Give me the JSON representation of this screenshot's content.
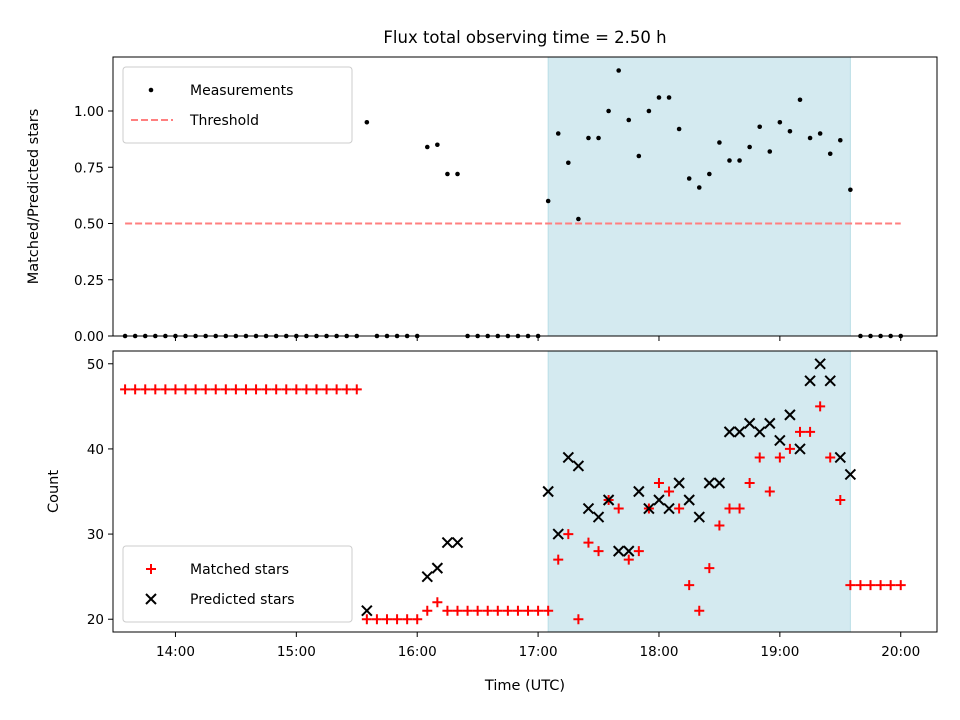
{
  "chart_data": [
    {
      "type": "scatter",
      "title": "Flux total observing time = 2.50 h",
      "ylabel": "Matched/Predicted stars",
      "xlabel": "",
      "xlim": [
        "13:29",
        "20:18"
      ],
      "ylim": [
        0,
        1.24
      ],
      "x_tick_labels": [
        "14:00",
        "15:00",
        "16:00",
        "17:00",
        "18:00",
        "19:00",
        "20:00"
      ],
      "y_tick_labels": [
        "0.00",
        "0.25",
        "0.50",
        "0.75",
        "1.00"
      ],
      "shaded_span": {
        "start": "17:05",
        "end": "19:35",
        "color": "#d4eaf0"
      },
      "legend_position": "upper left",
      "series": [
        {
          "name": "Measurements",
          "style": "dot",
          "color": "#000000",
          "points": [
            [
              "13:35",
              0
            ],
            [
              "13:40",
              0
            ],
            [
              "13:45",
              0
            ],
            [
              "13:50",
              0
            ],
            [
              "13:55",
              0
            ],
            [
              "14:00",
              0
            ],
            [
              "14:05",
              0
            ],
            [
              "14:10",
              0
            ],
            [
              "14:15",
              0
            ],
            [
              "14:20",
              0
            ],
            [
              "14:25",
              0
            ],
            [
              "14:30",
              0
            ],
            [
              "14:35",
              0
            ],
            [
              "14:40",
              0
            ],
            [
              "14:45",
              0
            ],
            [
              "14:50",
              0
            ],
            [
              "14:55",
              0
            ],
            [
              "15:00",
              0
            ],
            [
              "15:05",
              0
            ],
            [
              "15:10",
              0
            ],
            [
              "15:15",
              0
            ],
            [
              "15:20",
              0
            ],
            [
              "15:25",
              0
            ],
            [
              "15:30",
              0
            ],
            [
              "15:35",
              0.95
            ],
            [
              "15:40",
              0
            ],
            [
              "15:45",
              0
            ],
            [
              "15:50",
              0
            ],
            [
              "15:55",
              0
            ],
            [
              "16:00",
              0
            ],
            [
              "16:05",
              0.84
            ],
            [
              "16:10",
              0.85
            ],
            [
              "16:15",
              0.72
            ],
            [
              "16:20",
              0.72
            ],
            [
              "16:25",
              0
            ],
            [
              "16:30",
              0
            ],
            [
              "16:35",
              0
            ],
            [
              "16:40",
              0
            ],
            [
              "16:45",
              0
            ],
            [
              "16:50",
              0
            ],
            [
              "16:55",
              0
            ],
            [
              "17:00",
              0
            ],
            [
              "17:05",
              0.6
            ],
            [
              "17:10",
              0.9
            ],
            [
              "17:15",
              0.77
            ],
            [
              "17:20",
              0.52
            ],
            [
              "17:25",
              0.88
            ],
            [
              "17:30",
              0.88
            ],
            [
              "17:35",
              1.0
            ],
            [
              "17:40",
              1.18
            ],
            [
              "17:45",
              0.96
            ],
            [
              "17:50",
              0.8
            ],
            [
              "17:55",
              1.0
            ],
            [
              "18:00",
              1.06
            ],
            [
              "18:05",
              1.06
            ],
            [
              "18:10",
              0.92
            ],
            [
              "18:15",
              0.7
            ],
            [
              "18:20",
              0.66
            ],
            [
              "18:25",
              0.72
            ],
            [
              "18:30",
              0.86
            ],
            [
              "18:35",
              0.78
            ],
            [
              "18:40",
              0.78
            ],
            [
              "18:45",
              0.84
            ],
            [
              "18:50",
              0.93
            ],
            [
              "18:55",
              0.82
            ],
            [
              "19:00",
              0.95
            ],
            [
              "19:05",
              0.91
            ],
            [
              "19:10",
              1.05
            ],
            [
              "19:15",
              0.88
            ],
            [
              "19:20",
              0.9
            ],
            [
              "19:25",
              0.81
            ],
            [
              "19:30",
              0.87
            ],
            [
              "19:35",
              0.65
            ],
            [
              "19:40",
              0
            ],
            [
              "19:45",
              0
            ],
            [
              "19:50",
              0
            ],
            [
              "19:55",
              0
            ],
            [
              "20:00",
              0
            ]
          ]
        },
        {
          "name": "Threshold",
          "style": "dashed-line",
          "color": "#ff7f7f",
          "points": [
            [
              "13:35",
              0.5
            ],
            [
              "20:00",
              0.5
            ]
          ]
        }
      ]
    },
    {
      "type": "scatter",
      "title": "",
      "ylabel": "Count",
      "xlabel": "Time (UTC)",
      "xlim": [
        "13:29",
        "20:18"
      ],
      "ylim": [
        18.5,
        51.5
      ],
      "x_tick_labels": [
        "14:00",
        "15:00",
        "16:00",
        "17:00",
        "18:00",
        "19:00",
        "20:00"
      ],
      "y_tick_labels": [
        "20",
        "30",
        "40",
        "50"
      ],
      "shaded_span": {
        "start": "17:05",
        "end": "19:35",
        "color": "#d4eaf0"
      },
      "legend_position": "lower left",
      "series": [
        {
          "name": "Matched stars",
          "style": "plus",
          "color": "#ff0000",
          "points": [
            [
              "13:35",
              47
            ],
            [
              "13:40",
              47
            ],
            [
              "13:45",
              47
            ],
            [
              "13:50",
              47
            ],
            [
              "13:55",
              47
            ],
            [
              "14:00",
              47
            ],
            [
              "14:05",
              47
            ],
            [
              "14:10",
              47
            ],
            [
              "14:15",
              47
            ],
            [
              "14:20",
              47
            ],
            [
              "14:25",
              47
            ],
            [
              "14:30",
              47
            ],
            [
              "14:35",
              47
            ],
            [
              "14:40",
              47
            ],
            [
              "14:45",
              47
            ],
            [
              "14:50",
              47
            ],
            [
              "14:55",
              47
            ],
            [
              "15:00",
              47
            ],
            [
              "15:05",
              47
            ],
            [
              "15:10",
              47
            ],
            [
              "15:15",
              47
            ],
            [
              "15:20",
              47
            ],
            [
              "15:25",
              47
            ],
            [
              "15:30",
              47
            ],
            [
              "15:35",
              20
            ],
            [
              "15:40",
              20
            ],
            [
              "15:45",
              20
            ],
            [
              "15:50",
              20
            ],
            [
              "15:55",
              20
            ],
            [
              "16:00",
              20
            ],
            [
              "16:05",
              21
            ],
            [
              "16:10",
              22
            ],
            [
              "16:15",
              21
            ],
            [
              "16:20",
              21
            ],
            [
              "16:25",
              21
            ],
            [
              "16:30",
              21
            ],
            [
              "16:35",
              21
            ],
            [
              "16:40",
              21
            ],
            [
              "16:45",
              21
            ],
            [
              "16:50",
              21
            ],
            [
              "16:55",
              21
            ],
            [
              "17:00",
              21
            ],
            [
              "17:05",
              21
            ],
            [
              "17:10",
              27
            ],
            [
              "17:15",
              30
            ],
            [
              "17:20",
              20
            ],
            [
              "17:25",
              29
            ],
            [
              "17:30",
              28
            ],
            [
              "17:35",
              34
            ],
            [
              "17:40",
              33
            ],
            [
              "17:45",
              27
            ],
            [
              "17:50",
              28
            ],
            [
              "17:55",
              33
            ],
            [
              "18:00",
              36
            ],
            [
              "18:05",
              35
            ],
            [
              "18:10",
              33
            ],
            [
              "18:15",
              24
            ],
            [
              "18:20",
              21
            ],
            [
              "18:25",
              26
            ],
            [
              "18:30",
              31
            ],
            [
              "18:35",
              33
            ],
            [
              "18:40",
              33
            ],
            [
              "18:45",
              36
            ],
            [
              "18:50",
              39
            ],
            [
              "18:55",
              35
            ],
            [
              "19:00",
              39
            ],
            [
              "19:05",
              40
            ],
            [
              "19:10",
              42
            ],
            [
              "19:15",
              42
            ],
            [
              "19:20",
              45
            ],
            [
              "19:25",
              39
            ],
            [
              "19:30",
              34
            ],
            [
              "19:35",
              24
            ],
            [
              "19:40",
              24
            ],
            [
              "19:45",
              24
            ],
            [
              "19:50",
              24
            ],
            [
              "19:55",
              24
            ],
            [
              "20:00",
              24
            ]
          ]
        },
        {
          "name": "Predicted stars",
          "style": "x",
          "color": "#000000",
          "points": [
            [
              "15:35",
              21
            ],
            [
              "16:05",
              25
            ],
            [
              "16:10",
              26
            ],
            [
              "16:15",
              29
            ],
            [
              "16:20",
              29
            ],
            [
              "17:05",
              35
            ],
            [
              "17:10",
              30
            ],
            [
              "17:15",
              39
            ],
            [
              "17:20",
              38
            ],
            [
              "17:25",
              33
            ],
            [
              "17:30",
              32
            ],
            [
              "17:35",
              34
            ],
            [
              "17:40",
              28
            ],
            [
              "17:45",
              28
            ],
            [
              "17:50",
              35
            ],
            [
              "17:55",
              33
            ],
            [
              "18:00",
              34
            ],
            [
              "18:05",
              33
            ],
            [
              "18:10",
              36
            ],
            [
              "18:15",
              34
            ],
            [
              "18:20",
              32
            ],
            [
              "18:25",
              36
            ],
            [
              "18:30",
              36
            ],
            [
              "18:35",
              42
            ],
            [
              "18:40",
              42
            ],
            [
              "18:45",
              43
            ],
            [
              "18:50",
              42
            ],
            [
              "18:55",
              43
            ],
            [
              "19:00",
              41
            ],
            [
              "19:05",
              44
            ],
            [
              "19:10",
              40
            ],
            [
              "19:15",
              48
            ],
            [
              "19:20",
              50
            ],
            [
              "19:25",
              48
            ],
            [
              "19:30",
              39
            ],
            [
              "19:35",
              37
            ]
          ]
        }
      ]
    }
  ]
}
